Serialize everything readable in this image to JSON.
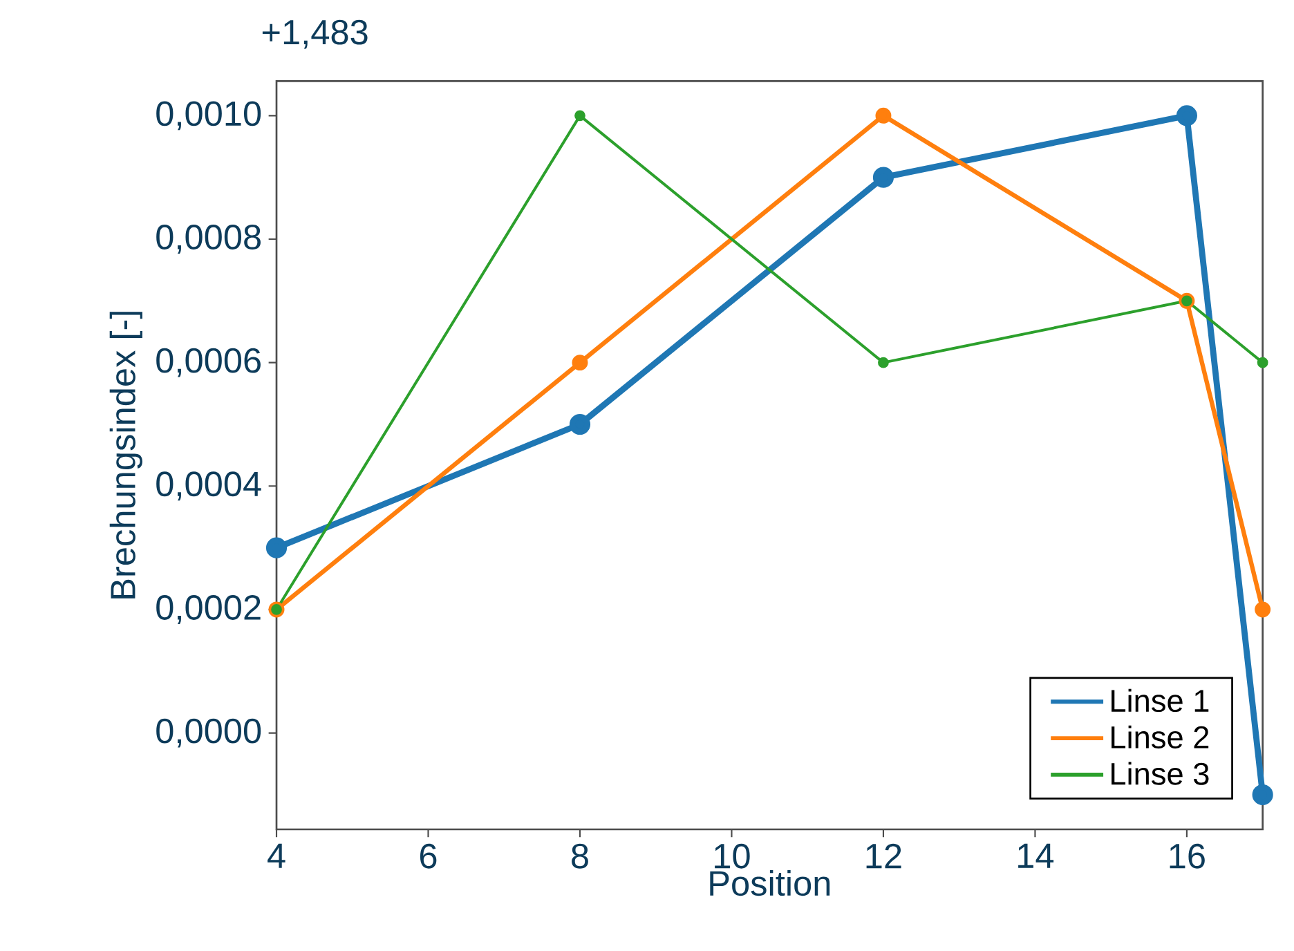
{
  "chart_data": {
    "type": "line",
    "xlabel": "Position",
    "ylabel": "Brechungsindex  [-]",
    "annotations": [
      "+1,483"
    ],
    "x": [
      4,
      8,
      12,
      16,
      17
    ],
    "series": [
      {
        "name": "Linse 1",
        "color": "#1f77b4",
        "values": [
          0.0003,
          0.0005,
          0.0009,
          0.001,
          -0.0001
        ]
      },
      {
        "name": "Linse 2",
        "color": "#ff7f0e",
        "values": [
          0.0002,
          0.0006,
          0.001,
          0.0007,
          0.0002
        ]
      },
      {
        "name": "Linse 3",
        "color": "#2ca02c",
        "values": [
          0.0002,
          0.001,
          0.0006,
          0.0007,
          0.0006
        ]
      }
    ],
    "xlim": [
      4,
      17
    ],
    "ylim": [
      -0.000156,
      0.001056
    ],
    "xticks": [
      4,
      6,
      8,
      10,
      12,
      14,
      16
    ],
    "yticks": [
      {
        "value": 0,
        "label": "0,0000"
      },
      {
        "value": 0.0002,
        "label": "0,0002"
      },
      {
        "value": 0.0004,
        "label": "0,0004"
      },
      {
        "value": 0.0006,
        "label": "0,0006"
      },
      {
        "value": 0.0008,
        "label": "0,0008"
      },
      {
        "value": 0.001,
        "label": "0,0010"
      }
    ],
    "grid": false,
    "legend": "bottom right",
    "marker": "circle",
    "line_style": "solid"
  }
}
